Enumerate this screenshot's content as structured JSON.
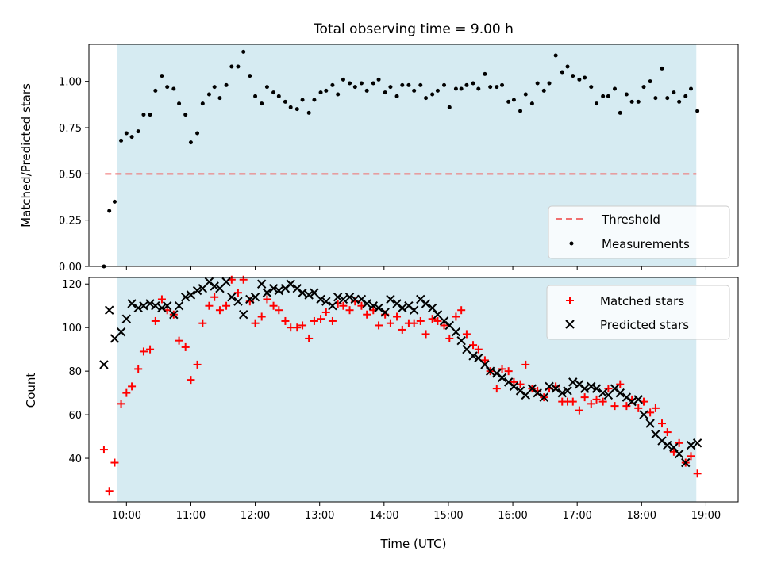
{
  "chart_data": [
    {
      "type": "scatter",
      "title": "Total observing time = 9.00 h",
      "xlabel": "",
      "ylabel": "Matched/Predicted stars",
      "xlim": [
        "09:25",
        "19:30"
      ],
      "ylim": [
        0,
        1.2
      ],
      "yticks": [
        "0.00",
        "0.25",
        "0.50",
        "0.75",
        "1.00"
      ],
      "yticks_values": [
        0,
        0.25,
        0.5,
        0.75,
        1.0
      ],
      "shaded_span": [
        "09:51",
        "18:51"
      ],
      "threshold": {
        "name": "Threshold",
        "value": 0.5,
        "x": [
          "09:40",
          "18:51"
        ],
        "color": "#f07070",
        "style": "dashed"
      },
      "legend_placement": "lower-right",
      "series": [
        {
          "name": "Measurements",
          "color": "#000000",
          "marker": "dot",
          "x": [
            "09:39",
            "09:44",
            "09:49",
            "09:55",
            "10:00",
            "10:05",
            "10:11",
            "10:16",
            "10:22",
            "10:27",
            "10:33",
            "10:38",
            "10:44",
            "10:49",
            "10:55",
            "11:00",
            "11:06",
            "11:11",
            "11:17",
            "11:22",
            "11:27",
            "11:33",
            "11:38",
            "11:44",
            "11:49",
            "11:55",
            "12:00",
            "12:06",
            "12:11",
            "12:17",
            "12:22",
            "12:28",
            "12:33",
            "12:39",
            "12:44",
            "12:50",
            "12:55",
            "13:01",
            "13:06",
            "13:12",
            "13:17",
            "13:22",
            "13:28",
            "13:33",
            "13:39",
            "13:44",
            "13:50",
            "13:55",
            "14:01",
            "14:06",
            "14:12",
            "14:17",
            "14:23",
            "14:28",
            "14:34",
            "14:39",
            "14:45",
            "14:50",
            "14:56",
            "15:01",
            "15:07",
            "15:12",
            "15:17",
            "15:23",
            "15:28",
            "15:34",
            "15:39",
            "15:45",
            "15:50",
            "15:56",
            "16:01",
            "16:07",
            "16:12",
            "16:18",
            "16:23",
            "16:29",
            "16:34",
            "16:40",
            "16:46",
            "16:51",
            "16:56",
            "17:02",
            "17:07",
            "17:13",
            "17:18",
            "17:24",
            "17:29",
            "17:35",
            "17:40",
            "17:46",
            "17:51",
            "17:57",
            "18:02",
            "18:08",
            "18:13",
            "18:19",
            "18:24",
            "18:30",
            "18:35",
            "18:41",
            "18:46",
            "18:52"
          ],
          "y": [
            0.0,
            0.3,
            0.35,
            0.68,
            0.72,
            0.7,
            0.73,
            0.82,
            0.82,
            0.95,
            1.03,
            0.97,
            0.96,
            0.88,
            0.82,
            0.67,
            0.72,
            0.88,
            0.93,
            0.97,
            0.91,
            0.98,
            1.08,
            1.08,
            1.16,
            1.03,
            0.92,
            0.88,
            0.97,
            0.94,
            0.92,
            0.89,
            0.86,
            0.85,
            0.9,
            0.83,
            0.9,
            0.94,
            0.95,
            0.98,
            0.93,
            1.01,
            0.99,
            0.97,
            0.99,
            0.95,
            0.99,
            1.01,
            0.94,
            0.97,
            0.92,
            0.98,
            0.98,
            0.95,
            0.98,
            0.91,
            0.93,
            0.95,
            0.98,
            0.86,
            0.96,
            0.96,
            0.98,
            0.99,
            0.96,
            1.04,
            0.97,
            0.97,
            0.98,
            0.89,
            0.9,
            0.84,
            0.93,
            0.88,
            0.99,
            0.95,
            0.99,
            1.14,
            1.05,
            1.08,
            1.03,
            1.01,
            1.02,
            0.97,
            0.88,
            0.92,
            0.92,
            0.96,
            0.83,
            0.93,
            0.89,
            0.89,
            0.97,
            1.0,
            0.91,
            1.07,
            0.91,
            0.94,
            0.89,
            0.92,
            0.96,
            0.84
          ]
        }
      ]
    },
    {
      "type": "scatter",
      "title": "",
      "xlabel": "Time (UTC)",
      "ylabel": "Count",
      "xlim": [
        "09:25",
        "19:30"
      ],
      "ylim": [
        20,
        123
      ],
      "xticks": [
        "10:00",
        "11:00",
        "12:00",
        "13:00",
        "14:00",
        "15:00",
        "16:00",
        "17:00",
        "18:00",
        "19:00"
      ],
      "yticks": [
        "40",
        "60",
        "80",
        "100",
        "120"
      ],
      "yticks_values": [
        40,
        60,
        80,
        100,
        120
      ],
      "shaded_span": [
        "09:51",
        "18:51"
      ],
      "legend_placement": "upper-right",
      "series": [
        {
          "name": "Matched stars",
          "color": "#ff0000",
          "marker": "plus",
          "x": [
            "09:39",
            "09:44",
            "09:49",
            "09:55",
            "10:00",
            "10:05",
            "10:11",
            "10:16",
            "10:22",
            "10:27",
            "10:33",
            "10:38",
            "10:44",
            "10:49",
            "10:55",
            "11:00",
            "11:06",
            "11:11",
            "11:17",
            "11:22",
            "11:27",
            "11:33",
            "11:38",
            "11:44",
            "11:49",
            "11:55",
            "12:00",
            "12:06",
            "12:11",
            "12:17",
            "12:22",
            "12:28",
            "12:33",
            "12:39",
            "12:44",
            "12:50",
            "12:55",
            "13:01",
            "13:06",
            "13:12",
            "13:17",
            "13:22",
            "13:28",
            "13:33",
            "13:39",
            "13:44",
            "13:50",
            "13:55",
            "14:01",
            "14:06",
            "14:12",
            "14:17",
            "14:23",
            "14:28",
            "14:34",
            "14:39",
            "14:45",
            "14:50",
            "14:56",
            "15:01",
            "15:07",
            "15:12",
            "15:17",
            "15:23",
            "15:28",
            "15:34",
            "15:39",
            "15:45",
            "15:50",
            "15:56",
            "16:01",
            "16:07",
            "16:12",
            "16:18",
            "16:23",
            "16:29",
            "16:34",
            "16:40",
            "16:46",
            "16:51",
            "16:56",
            "17:02",
            "17:07",
            "17:13",
            "17:18",
            "17:24",
            "17:29",
            "17:35",
            "17:40",
            "17:46",
            "17:51",
            "17:57",
            "18:02",
            "18:08",
            "18:13",
            "18:19",
            "18:24",
            "18:30",
            "18:35",
            "18:41",
            "18:46",
            "18:52"
          ],
          "y": [
            44,
            25,
            38,
            65,
            70,
            73,
            81,
            89,
            90,
            103,
            113,
            108,
            106,
            94,
            91,
            76,
            83,
            102,
            110,
            114,
            108,
            110,
            122,
            116,
            122,
            112,
            102,
            105,
            113,
            110,
            108,
            103,
            100,
            100,
            101,
            95,
            103,
            104,
            107,
            103,
            111,
            110,
            108,
            112,
            110,
            106,
            108,
            101,
            106,
            102,
            105,
            99,
            102,
            102,
            103,
            97,
            104,
            103,
            101,
            95,
            105,
            108,
            97,
            92,
            90,
            85,
            80,
            72,
            81,
            80,
            75,
            74,
            83,
            72,
            71,
            68,
            72,
            73,
            66,
            66,
            66,
            62,
            68,
            65,
            67,
            66,
            72,
            64,
            74,
            64,
            67,
            63,
            66,
            61,
            63,
            56,
            52,
            43,
            47,
            38,
            41,
            33
          ]
        },
        {
          "name": "Predicted stars",
          "color": "#000000",
          "marker": "x",
          "x": [
            "09:39",
            "09:44",
            "09:49",
            "09:55",
            "10:00",
            "10:05",
            "10:11",
            "10:16",
            "10:22",
            "10:27",
            "10:33",
            "10:38",
            "10:44",
            "10:49",
            "10:55",
            "11:00",
            "11:06",
            "11:11",
            "11:17",
            "11:22",
            "11:27",
            "11:33",
            "11:38",
            "11:44",
            "11:49",
            "11:55",
            "12:00",
            "12:06",
            "12:11",
            "12:17",
            "12:22",
            "12:28",
            "12:33",
            "12:39",
            "12:44",
            "12:50",
            "12:55",
            "13:01",
            "13:06",
            "13:12",
            "13:17",
            "13:22",
            "13:28",
            "13:33",
            "13:39",
            "13:44",
            "13:50",
            "13:55",
            "14:01",
            "14:06",
            "14:12",
            "14:17",
            "14:23",
            "14:28",
            "14:34",
            "14:39",
            "14:45",
            "14:50",
            "14:56",
            "15:01",
            "15:07",
            "15:12",
            "15:17",
            "15:23",
            "15:28",
            "15:34",
            "15:39",
            "15:45",
            "15:50",
            "15:56",
            "16:01",
            "16:07",
            "16:12",
            "16:18",
            "16:23",
            "16:29",
            "16:34",
            "16:40",
            "16:46",
            "16:51",
            "16:56",
            "17:02",
            "17:07",
            "17:13",
            "17:18",
            "17:24",
            "17:29",
            "17:35",
            "17:40",
            "17:46",
            "17:51",
            "17:57",
            "18:02",
            "18:08",
            "18:13",
            "18:19",
            "18:24",
            "18:30",
            "18:35",
            "18:41",
            "18:46",
            "18:52"
          ],
          "y": [
            83,
            108,
            95,
            98,
            104,
            111,
            109,
            110,
            111,
            110,
            109,
            110,
            106,
            110,
            114,
            115,
            117,
            118,
            121,
            119,
            118,
            121,
            114,
            112,
            106,
            113,
            114,
            120,
            116,
            118,
            117,
            118,
            120,
            118,
            116,
            115,
            116,
            113,
            112,
            110,
            114,
            113,
            114,
            113,
            113,
            111,
            110,
            109,
            107,
            113,
            111,
            109,
            110,
            108,
            113,
            111,
            109,
            106,
            103,
            101,
            98,
            94,
            90,
            87,
            86,
            83,
            80,
            79,
            77,
            75,
            73,
            71,
            69,
            72,
            70,
            68,
            73,
            72,
            70,
            71,
            75,
            74,
            72,
            73,
            72,
            70,
            69,
            72,
            70,
            68,
            66,
            67,
            60,
            56,
            51,
            48,
            46,
            45,
            42,
            38,
            46,
            47
          ]
        }
      ]
    }
  ]
}
